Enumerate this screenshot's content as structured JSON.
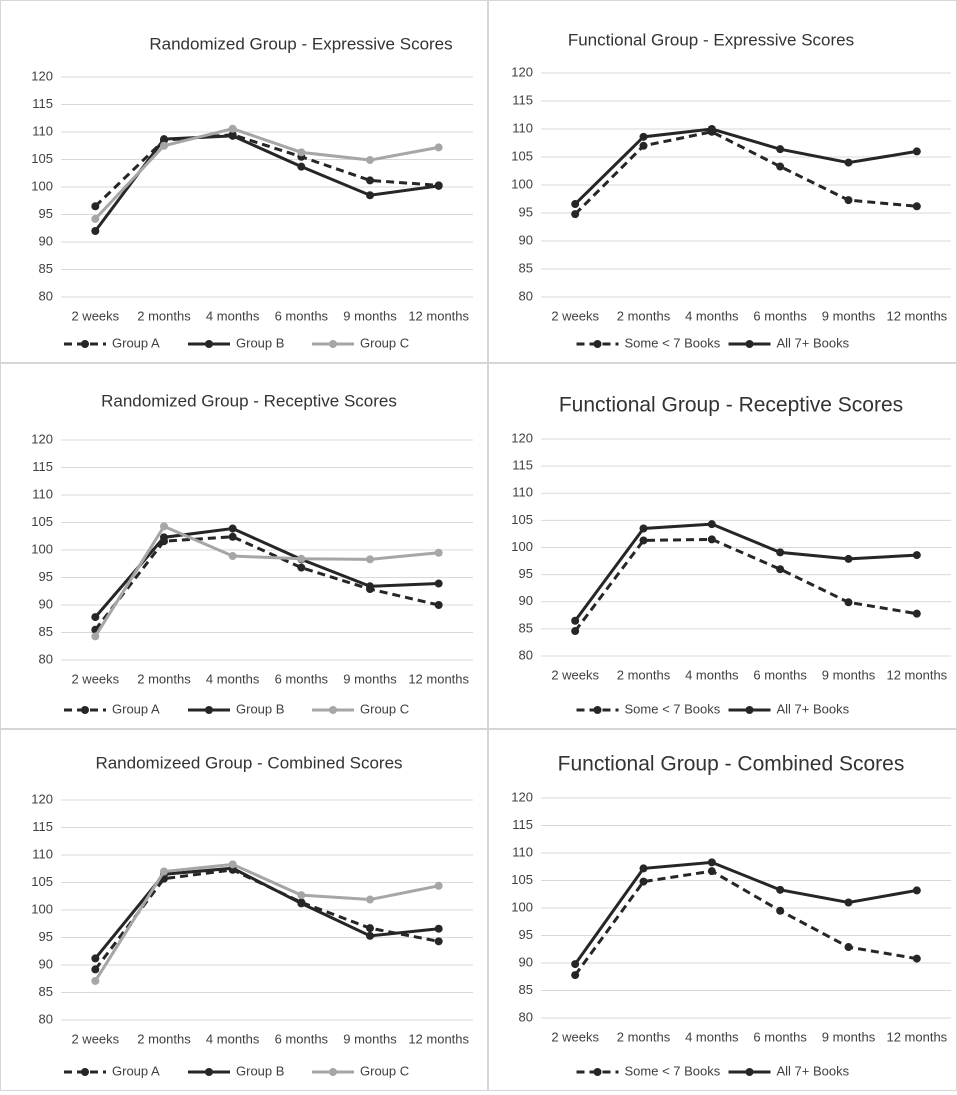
{
  "chart_data": [
    {
      "type": "line",
      "title": "Randomized Group - Expressive Scores",
      "categories": [
        "2 weeks",
        "2 months",
        "4 months",
        "6 months",
        "9 months",
        "12 months"
      ],
      "ylim": [
        80,
        120
      ],
      "yticks": [
        80,
        85,
        90,
        95,
        100,
        105,
        110,
        115,
        120
      ],
      "grid": true,
      "legend": "bottom",
      "series": [
        {
          "name": "Group A",
          "color": "#262626",
          "line_style": "dashed",
          "values": [
            96.5,
            108.5,
            109.5,
            105.5,
            101.2,
            100.3
          ]
        },
        {
          "name": "Group B",
          "color": "#262626",
          "line_style": "solid",
          "values": [
            92,
            108.7,
            109.3,
            103.7,
            98.5,
            100.2
          ]
        },
        {
          "name": "Group C",
          "color": "#a6a6a6",
          "line_style": "solid",
          "values": [
            94.2,
            107.5,
            110.6,
            106.3,
            104.9,
            107.2
          ]
        }
      ]
    },
    {
      "type": "line",
      "title": "Functional Group - Expressive Scores",
      "categories": [
        "2 weeks",
        "2 months",
        "4 months",
        "6 months",
        "9 months",
        "12 months"
      ],
      "ylim": [
        80,
        120
      ],
      "yticks": [
        80,
        85,
        90,
        95,
        100,
        105,
        110,
        115,
        120
      ],
      "grid": true,
      "legend": "bottom",
      "series": [
        {
          "name": "Some < 7 Books",
          "color": "#262626",
          "line_style": "dashed",
          "values": [
            94.8,
            107,
            109.5,
            103.3,
            97.3,
            96.2
          ]
        },
        {
          "name": "All 7+ Books",
          "color": "#262626",
          "line_style": "solid",
          "values": [
            96.6,
            108.6,
            110,
            106.4,
            104,
            106
          ]
        }
      ]
    },
    {
      "type": "line",
      "title": "Randomized  Group - Receptive Scores",
      "categories": [
        "2 weeks",
        "2 months",
        "4 months",
        "6 months",
        "9 months",
        "12 months"
      ],
      "ylim": [
        80,
        120
      ],
      "yticks": [
        80,
        85,
        90,
        95,
        100,
        105,
        110,
        115,
        120
      ],
      "grid": true,
      "legend": "bottom",
      "series": [
        {
          "name": "Group A",
          "color": "#262626",
          "line_style": "dashed",
          "values": [
            85.5,
            101.6,
            102.4,
            96.8,
            92.9,
            90
          ]
        },
        {
          "name": "Group B",
          "color": "#262626",
          "line_style": "solid",
          "values": [
            87.8,
            102.3,
            103.9,
            98.3,
            93.4,
            93.9
          ]
        },
        {
          "name": "Group C",
          "color": "#a6a6a6",
          "line_style": "solid",
          "values": [
            84.3,
            104.3,
            98.9,
            98.4,
            98.3,
            99.5
          ]
        }
      ]
    },
    {
      "type": "line",
      "title": "Functional Group - Receptive Scores",
      "categories": [
        "2 weeks",
        "2 months",
        "4 months",
        "6 months",
        "9 months",
        "12 months"
      ],
      "ylim": [
        80,
        120
      ],
      "yticks": [
        80,
        85,
        90,
        95,
        100,
        105,
        110,
        115,
        120
      ],
      "grid": true,
      "legend": "bottom",
      "series": [
        {
          "name": "Some < 7 Books",
          "color": "#262626",
          "line_style": "dashed",
          "values": [
            84.6,
            101.3,
            101.5,
            96,
            89.9,
            87.8
          ]
        },
        {
          "name": "All 7+ Books",
          "color": "#262626",
          "line_style": "solid",
          "values": [
            86.5,
            103.5,
            104.3,
            99.1,
            97.9,
            98.6
          ]
        }
      ]
    },
    {
      "type": "line",
      "title": "Randomizeed Group - Combined Scores",
      "categories": [
        "2 weeks",
        "2 months",
        "4 months",
        "6 months",
        "9 months",
        "12 months"
      ],
      "ylim": [
        80,
        120
      ],
      "yticks": [
        80,
        85,
        90,
        95,
        100,
        105,
        110,
        115,
        120
      ],
      "grid": true,
      "legend": "bottom",
      "series": [
        {
          "name": "Group A",
          "color": "#262626",
          "line_style": "dashed",
          "values": [
            89.2,
            105.7,
            107.3,
            101.4,
            96.7,
            94.3
          ]
        },
        {
          "name": "Group B",
          "color": "#262626",
          "line_style": "solid",
          "values": [
            91.2,
            106.5,
            107.6,
            101.2,
            95.3,
            96.6
          ]
        },
        {
          "name": "Group C",
          "color": "#a6a6a6",
          "line_style": "solid",
          "values": [
            87.1,
            107,
            108.3,
            102.7,
            101.9,
            104.4
          ]
        }
      ]
    },
    {
      "type": "line",
      "title": "Functional Group - Combined Scores",
      "categories": [
        "2 weeks",
        "2 months",
        "4 months",
        "6 months",
        "9 months",
        "12 months"
      ],
      "ylim": [
        80,
        120
      ],
      "yticks": [
        80,
        85,
        90,
        95,
        100,
        105,
        110,
        115,
        120
      ],
      "grid": true,
      "legend": "bottom",
      "series": [
        {
          "name": "Some < 7 Books",
          "color": "#262626",
          "line_style": "dashed",
          "values": [
            87.8,
            104.8,
            106.7,
            99.5,
            92.9,
            90.8
          ]
        },
        {
          "name": "All 7+ Books",
          "color": "#262626",
          "line_style": "solid",
          "values": [
            89.8,
            107.2,
            108.3,
            103.3,
            101,
            103.2
          ]
        }
      ]
    }
  ]
}
